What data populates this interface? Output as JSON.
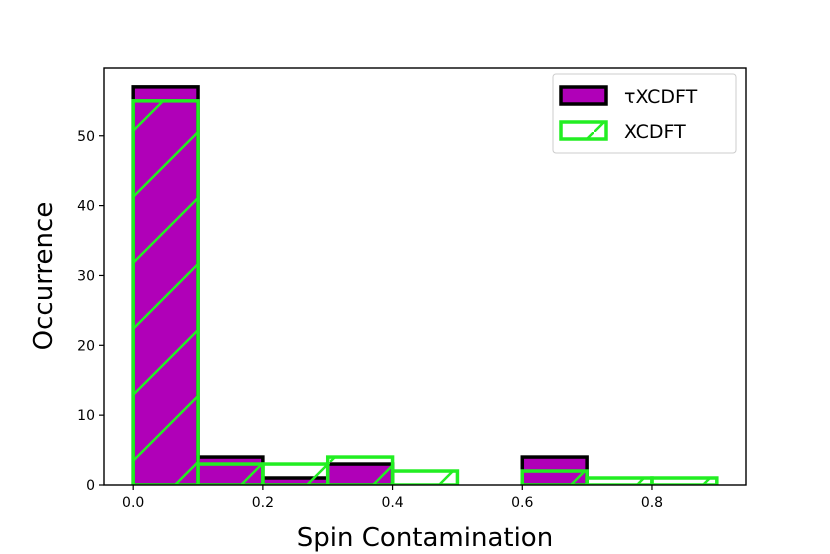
{
  "chart_data": {
    "type": "bar",
    "subtype": "histogram-overlay",
    "title": "",
    "xlabel": "Spin Contamination",
    "ylabel": "Occurrence",
    "xlim": [
      -0.045,
      0.945
    ],
    "ylim": [
      0,
      59.7
    ],
    "xticks": [
      "0.0",
      "0.2",
      "0.4",
      "0.6",
      "0.8"
    ],
    "yticks": [
      "0",
      "10",
      "20",
      "30",
      "40",
      "50"
    ],
    "bin_edges": [
      0.0,
      0.1,
      0.2,
      0.3,
      0.4,
      0.5,
      0.6,
      0.7,
      0.8,
      0.9
    ],
    "grid": false,
    "legend_position": "upper-right",
    "series": [
      {
        "name": "τXCDFT",
        "style": "filled",
        "fill": "#b000b8",
        "edge": "#000000",
        "values": [
          57,
          4,
          1,
          3,
          0,
          0,
          4,
          0,
          0
        ]
      },
      {
        "name": "XCDFT",
        "style": "hatched-outline",
        "fill": "none",
        "edge": "#22ee22",
        "hatch": "/",
        "values": [
          55,
          3,
          3,
          4,
          2,
          0,
          2,
          1,
          1
        ]
      }
    ]
  }
}
